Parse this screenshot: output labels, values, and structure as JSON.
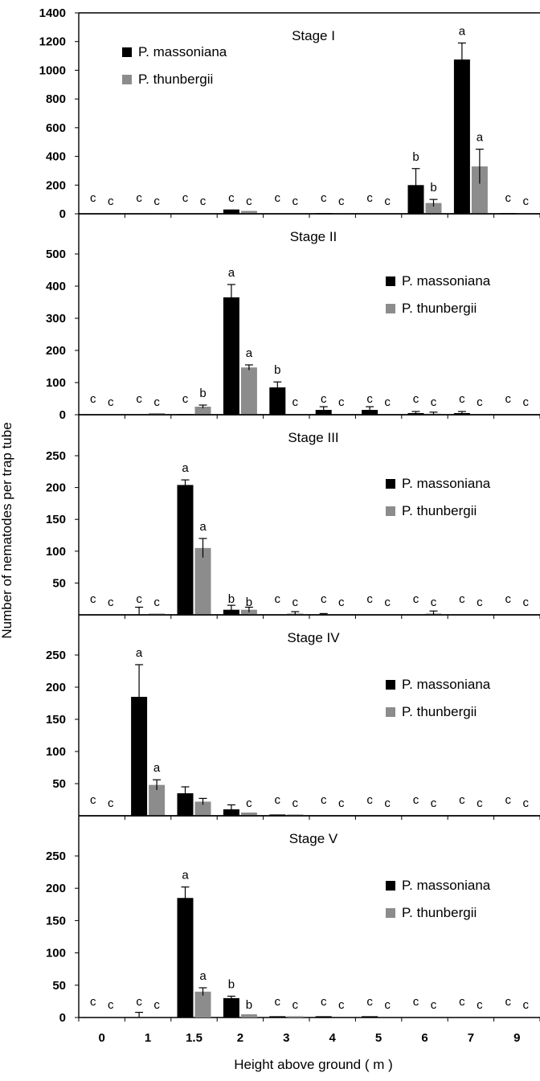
{
  "chart_data": {
    "type": "bar",
    "ylabel": "Number of nematodes per trap tube",
    "xlabel": "Height above ground ( m )",
    "categories": [
      "0",
      "1",
      "1.5",
      "2",
      "3",
      "4",
      "5",
      "6",
      "7",
      "9"
    ],
    "legend": [
      "P. massoniana",
      "P. thunbergii"
    ],
    "colors": {
      "massoniana": "#000000",
      "thunbergii": "#8c8c8c"
    },
    "panels": [
      {
        "title": "Stage I",
        "y_ticks": [
          "0",
          "200",
          "400",
          "600",
          "800",
          "1000",
          "1200",
          "1400"
        ],
        "ylim": [
          0,
          1400
        ],
        "legend_position": "top-left",
        "series": [
          {
            "name": "P. massoniana",
            "values": [
              0,
              0,
              0,
              30,
              0,
              5,
              0,
              200,
              1075,
              5
            ],
            "errors": [
              0,
              0,
              0,
              0,
              0,
              0,
              0,
              115,
              115,
              0
            ],
            "letters": [
              "c",
              "c",
              "c",
              "c",
              "c",
              "c",
              "c",
              "b",
              "a",
              "c"
            ]
          },
          {
            "name": "P. thunbergii",
            "values": [
              0,
              5,
              0,
              20,
              0,
              5,
              0,
              75,
              330,
              5
            ],
            "errors": [
              0,
              0,
              0,
              0,
              0,
              0,
              0,
              25,
              120,
              0
            ],
            "letters": [
              "c",
              "c",
              "c",
              "c",
              "c",
              "c",
              "c",
              "b",
              "a",
              "c"
            ]
          }
        ]
      },
      {
        "title": "Stage II",
        "y_ticks": [
          "0",
          "100",
          "200",
          "300",
          "400",
          "500"
        ],
        "ylim": [
          0,
          500
        ],
        "legend_position": "right",
        "series": [
          {
            "name": "P. massoniana",
            "values": [
              0,
              0,
              2,
              365,
              85,
              15,
              15,
              5,
              5,
              0
            ],
            "errors": [
              0,
              0,
              0,
              40,
              17,
              10,
              10,
              5,
              5,
              0
            ],
            "letters": [
              "c",
              "c",
              "c",
              "a",
              "b",
              "c",
              "c",
              "c",
              "c",
              "c"
            ]
          },
          {
            "name": "P. thunbergii",
            "values": [
              0,
              5,
              25,
              147,
              2,
              0,
              2,
              3,
              0,
              2
            ],
            "errors": [
              0,
              0,
              5,
              8,
              0,
              0,
              0,
              5,
              0,
              0
            ],
            "letters": [
              "c",
              "c",
              "b",
              "a",
              "c",
              "c",
              "c",
              "c",
              "c",
              "c"
            ]
          }
        ]
      },
      {
        "title": "Stage III",
        "y_ticks": [
          "50",
          "100",
          "150",
          "200",
          "250"
        ],
        "ylim": [
          0,
          250
        ],
        "legend_position": "right",
        "series": [
          {
            "name": "P. massoniana",
            "values": [
              0,
              0,
              204,
              8,
              0,
              0,
              0,
              0,
              0,
              0
            ],
            "errors": [
              0,
              12,
              8,
              7,
              0,
              2,
              0,
              0,
              0,
              0
            ],
            "letters": [
              "c",
              "c",
              "a",
              "b",
              "c",
              "c",
              "c",
              "c",
              "c",
              "c"
            ]
          },
          {
            "name": "P. thunbergii",
            "values": [
              0,
              2,
              105,
              8,
              2,
              0,
              0,
              2,
              0,
              0
            ],
            "errors": [
              0,
              0,
              15,
              4,
              3,
              0,
              0,
              4,
              0,
              0
            ],
            "letters": [
              "c",
              "c",
              "a",
              "b",
              "c",
              "c",
              "c",
              "c",
              "c",
              "c"
            ]
          }
        ]
      },
      {
        "title": "Stage IV",
        "y_ticks": [
          "50",
          "100",
          "150",
          "200",
          "250"
        ],
        "ylim": [
          0,
          250
        ],
        "legend_position": "right",
        "series": [
          {
            "name": "P. massoniana",
            "values": [
              0,
              185,
              35,
              10,
              2,
              0,
              0,
              0,
              0,
              0
            ],
            "errors": [
              0,
              50,
              10,
              7,
              0,
              0,
              0,
              0,
              0,
              0
            ],
            "letters": [
              "c",
              "a",
              "",
              "",
              "c",
              "c",
              "c",
              "c",
              "c",
              "c"
            ]
          },
          {
            "name": "P. thunbergii",
            "values": [
              0,
              48,
              22,
              5,
              2,
              0,
              0,
              0,
              0,
              0
            ],
            "errors": [
              0,
              8,
              5,
              0,
              0,
              0,
              0,
              0,
              0,
              0
            ],
            "letters": [
              "c",
              "a",
              "",
              "c",
              "c",
              "c",
              "c",
              "c",
              "c",
              "c"
            ]
          }
        ]
      },
      {
        "title": "Stage V",
        "y_ticks": [
          "0",
          "50",
          "100",
          "150",
          "200",
          "250"
        ],
        "ylim": [
          0,
          250
        ],
        "legend_position": "right",
        "series": [
          {
            "name": "P. massoniana",
            "values": [
              0,
              0,
              185,
              30,
              2,
              2,
              2,
              0,
              0,
              0
            ],
            "errors": [
              0,
              8,
              17,
              3,
              0,
              0,
              0,
              0,
              0,
              0
            ],
            "letters": [
              "c",
              "c",
              "a",
              "b",
              "c",
              "c",
              "c",
              "c",
              "c",
              "c"
            ]
          },
          {
            "name": "P. thunbergii",
            "values": [
              0,
              0,
              40,
              5,
              2,
              0,
              0,
              0,
              0,
              0
            ],
            "errors": [
              0,
              0,
              6,
              0,
              0,
              0,
              0,
              0,
              0,
              0
            ],
            "letters": [
              "c",
              "c",
              "a",
              "b",
              "c",
              "c",
              "c",
              "c",
              "c",
              "c"
            ]
          }
        ]
      }
    ]
  }
}
